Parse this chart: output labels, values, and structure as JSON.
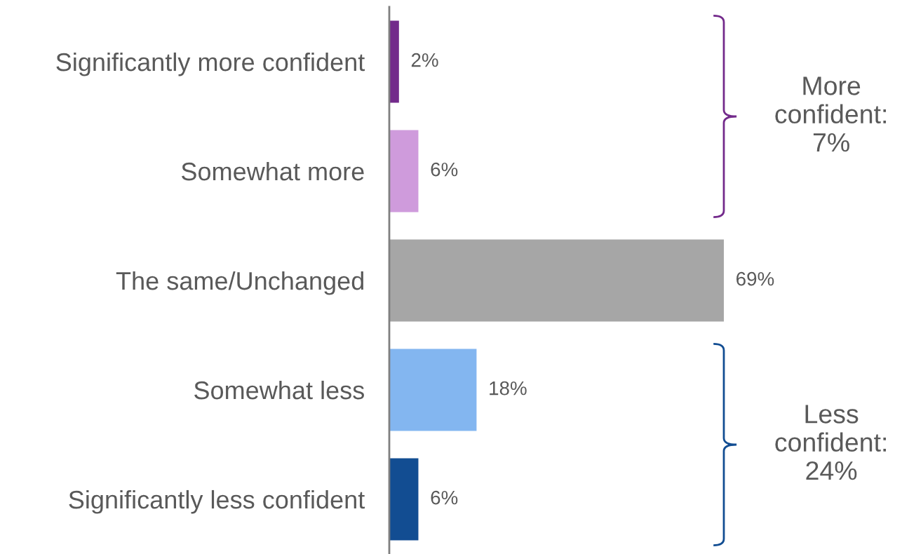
{
  "chart_data": {
    "type": "bar",
    "orientation": "horizontal",
    "categories": [
      "Significantly more confident",
      "Somewhat more",
      "The same/Unchanged",
      "Somewhat less",
      "Significantly less confident"
    ],
    "values": [
      2,
      6,
      69,
      18,
      6
    ],
    "colors": [
      "#732a8b",
      "#cf9bdc",
      "#a6a6a6",
      "#83b6f0",
      "#124d92"
    ],
    "value_labels": [
      "2%",
      "6%",
      "69%",
      "18%",
      "6%"
    ],
    "annotations": [
      "More\nconfident:\n7%",
      "Less\nconfident:\n24%"
    ]
  }
}
